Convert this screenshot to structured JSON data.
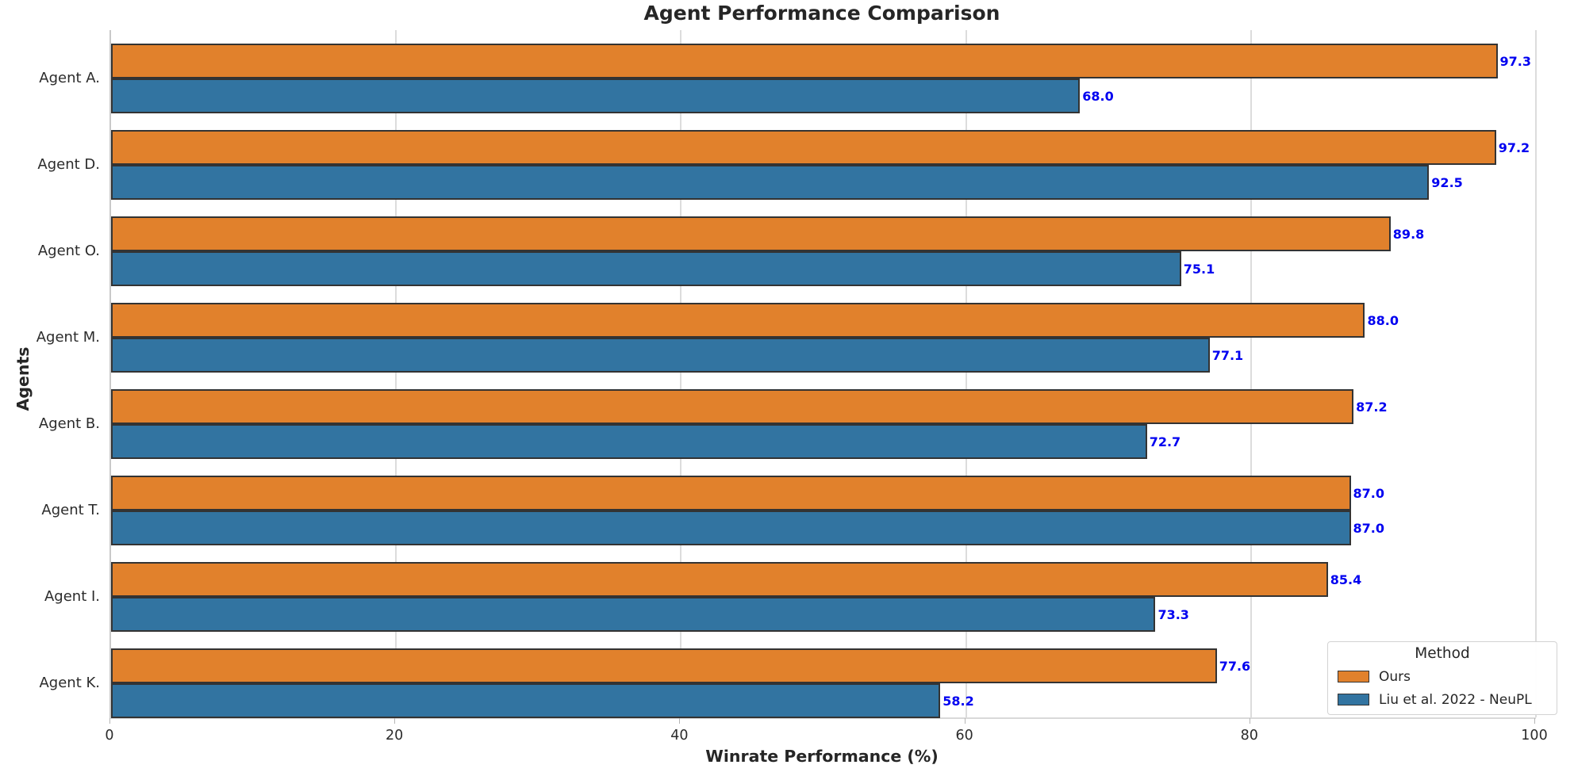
{
  "chart_data": {
    "type": "bar",
    "orientation": "horizontal",
    "title": "Agent Performance Comparison",
    "xlabel": "Winrate Performance (%)",
    "ylabel": "Agents",
    "categories": [
      "Agent A.",
      "Agent D.",
      "Agent O.",
      "Agent M.",
      "Agent B.",
      "Agent T.",
      "Agent I.",
      "Agent K."
    ],
    "series": [
      {
        "name": "Ours",
        "color": "#E1812C",
        "values": [
          97.3,
          97.2,
          89.8,
          88.0,
          87.2,
          87.0,
          85.4,
          77.6
        ]
      },
      {
        "name": "Liu et al. 2022 - NeuPL",
        "color": "#3274A1",
        "values": [
          68.0,
          92.5,
          75.1,
          77.1,
          72.7,
          87.0,
          73.3,
          58.2
        ]
      }
    ],
    "xlim": [
      0,
      100
    ],
    "xticks": [
      0,
      20,
      40,
      60,
      80,
      100
    ],
    "grid": true,
    "legend_title": "Method",
    "legend_position": "lower right",
    "value_labels": true,
    "value_label_decimals": 1,
    "colors": {
      "bar_edge": "#333333",
      "value_label": "#0000F0",
      "gridline": "#DCDCDC",
      "text": "#2B2B2B",
      "title_text": "#262626"
    }
  }
}
